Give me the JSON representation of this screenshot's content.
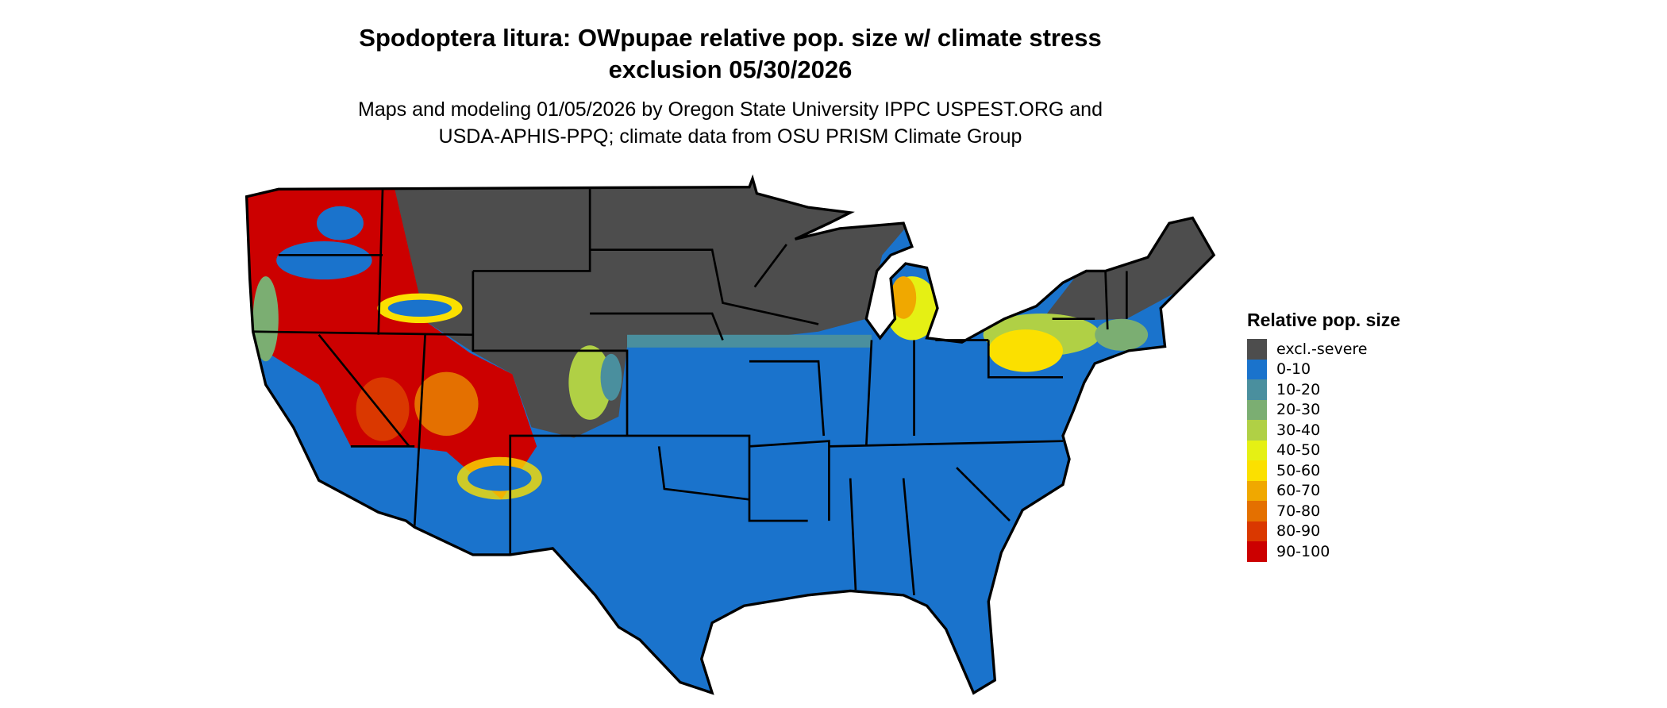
{
  "title": {
    "line1": "Spodoptera litura: OWpupae relative pop. size w/ climate stress",
    "line2": "exclusion 05/30/2026"
  },
  "subtitle": {
    "line1": "Maps and modeling 01/05/2026 by Oregon State University IPPC USPEST.ORG and",
    "line2": "USDA-APHIS-PPQ; climate data from OSU PRISM Climate Group"
  },
  "map": {
    "region": "Contiguous United States",
    "boundaries": "state borders"
  },
  "legend": {
    "title": "Relative pop. size",
    "items": [
      {
        "label": "excl.-severe",
        "color": "#4d4d4d"
      },
      {
        "label": "0-10",
        "color": "#1a73cc"
      },
      {
        "label": "10-20",
        "color": "#4a8f9e"
      },
      {
        "label": "20-30",
        "color": "#7bae72"
      },
      {
        "label": "30-40",
        "color": "#b0d045"
      },
      {
        "label": "40-50",
        "color": "#e5f014"
      },
      {
        "label": "50-60",
        "color": "#fbe000"
      },
      {
        "label": "60-70",
        "color": "#f0a800"
      },
      {
        "label": "70-80",
        "color": "#e47000"
      },
      {
        "label": "80-90",
        "color": "#da3800"
      },
      {
        "label": "90-100",
        "color": "#cc0000"
      }
    ]
  }
}
